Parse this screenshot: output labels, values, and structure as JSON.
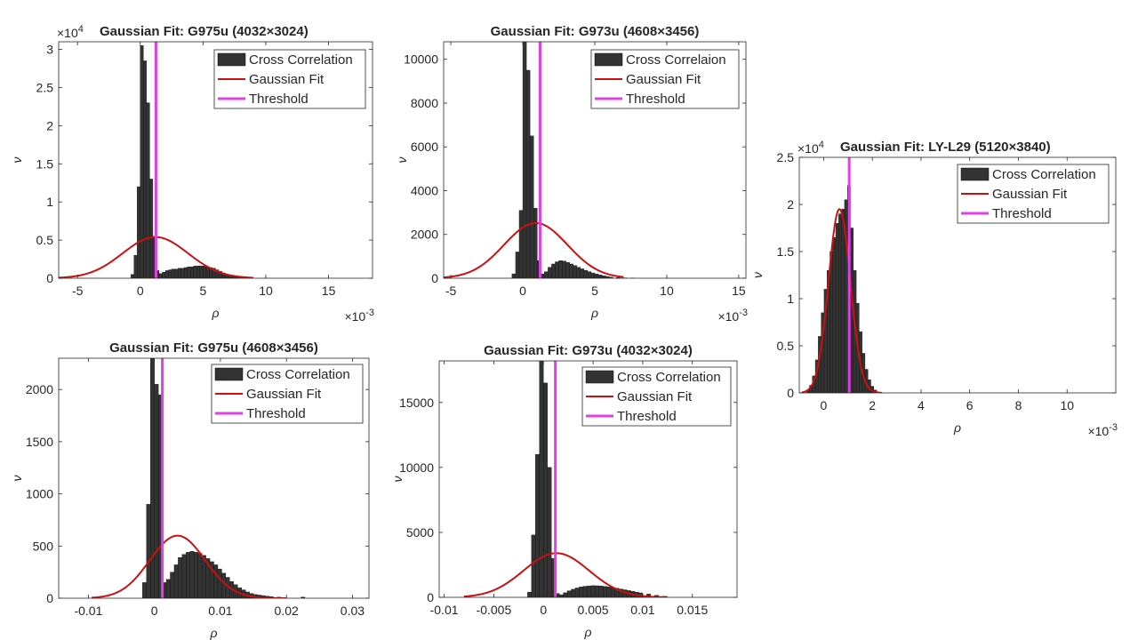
{
  "chart_data": [
    {
      "id": "p1",
      "type": "bar",
      "title": "Gaussian Fit: G975u (4032×3024)",
      "xlabel": "ρ",
      "ylabel": "ν",
      "x_multiplier": {
        "base": "×10",
        "exp": "-3"
      },
      "y_multiplier": {
        "base": "×10",
        "exp": "4"
      },
      "xlim": [
        -6.5,
        18.5
      ],
      "ylim": [
        0,
        3.1
      ],
      "xticks": [
        -5,
        0,
        5,
        10,
        15
      ],
      "xtick_labels": [
        "-5",
        "0",
        "5",
        "10",
        "15"
      ],
      "yticks": [
        0,
        0.5,
        1,
        1.5,
        2,
        2.5,
        3
      ],
      "ytick_labels": [
        "0",
        "0.5",
        "1",
        "1.5",
        "2",
        "2.5",
        "3"
      ],
      "bin_width": 0.25,
      "histogram": {
        "name": "Cross Correlation",
        "x": [
          -0.75,
          -0.5,
          -0.25,
          0,
          0.25,
          0.5,
          0.75,
          1,
          1.25,
          1.5,
          1.75,
          2,
          2.25,
          2.5,
          2.75,
          3,
          3.25,
          3.5,
          3.75,
          4,
          4.25,
          4.5,
          4.75,
          5,
          5.25,
          5.5,
          5.75,
          6,
          6.25,
          6.5,
          6.75,
          7,
          7.25,
          7.5,
          7.75,
          8,
          8.5
        ],
        "values": [
          0.05,
          0.3,
          1.2,
          3.05,
          2.85,
          2.3,
          1.3,
          0.55,
          0.1,
          0.06,
          0.08,
          0.1,
          0.11,
          0.12,
          0.12,
          0.13,
          0.13,
          0.14,
          0.15,
          0.15,
          0.16,
          0.16,
          0.16,
          0.16,
          0.15,
          0.14,
          0.13,
          0.11,
          0.09,
          0.07,
          0.05,
          0.04,
          0.03,
          0.02,
          0.015,
          0.01,
          0.005
        ]
      },
      "fit": {
        "name": "Gaussian Fit",
        "mu": 1.2,
        "sigma": 2.6,
        "peak": 0.54,
        "range": [
          -6.5,
          9
        ]
      },
      "threshold": {
        "name": "Threshold",
        "x": 1.25
      },
      "legend": {
        "position": "top-right",
        "entries": [
          "Cross Correlation",
          "Gaussian Fit",
          "Threshold"
        ]
      }
    },
    {
      "id": "p2",
      "type": "bar",
      "title": "Gaussian Fit: G973u (4608×3456)",
      "xlabel": "ρ",
      "ylabel": "ν",
      "x_multiplier": {
        "base": "×10",
        "exp": "-3"
      },
      "y_multiplier": null,
      "xlim": [
        -5.5,
        15.5
      ],
      "ylim": [
        0,
        10800
      ],
      "xticks": [
        -5,
        0,
        5,
        10,
        15
      ],
      "xtick_labels": [
        "-5",
        "0",
        "5",
        "10",
        "15"
      ],
      "yticks": [
        0,
        2000,
        4000,
        6000,
        8000,
        10000
      ],
      "ytick_labels": [
        "0",
        "2000",
        "4000",
        "6000",
        "8000",
        "10000"
      ],
      "bin_width": 0.25,
      "histogram": {
        "name": "Cross Correlaion",
        "x": [
          -0.75,
          -0.5,
          -0.25,
          0,
          0.25,
          0.5,
          0.75,
          1,
          1.25,
          1.5,
          1.75,
          2,
          2.25,
          2.5,
          2.75,
          3,
          3.25,
          3.5,
          3.75,
          4,
          4.25,
          4.5,
          4.75,
          5,
          5.25,
          5.5,
          5.75,
          6,
          6.5,
          7,
          7.5
        ],
        "values": [
          200,
          1200,
          3100,
          10800,
          9500,
          6500,
          3200,
          800,
          200,
          300,
          500,
          650,
          750,
          800,
          780,
          720,
          650,
          580,
          500,
          430,
          360,
          300,
          240,
          190,
          150,
          110,
          80,
          50,
          30,
          15,
          8
        ]
      },
      "fit": {
        "name": "Gaussian Fit",
        "mu": 0.9,
        "sigma": 2.2,
        "peak": 2520,
        "range": [
          -5.5,
          7
        ]
      },
      "threshold": {
        "name": "Threshold",
        "x": 1.2
      },
      "legend": {
        "position": "top-right",
        "entries": [
          "Cross Correlaion",
          "Gaussian Fit",
          "Threshold"
        ]
      }
    },
    {
      "id": "p3",
      "type": "bar",
      "title": "Gaussian Fit: LY-L29 (5120×3840)",
      "xlabel": "ρ",
      "ylabel": "ν",
      "x_multiplier": {
        "base": "×10",
        "exp": "-3"
      },
      "y_multiplier": {
        "base": "×10",
        "exp": "4"
      },
      "xlim": [
        -1,
        12
      ],
      "ylim": [
        0,
        2.5
      ],
      "xticks": [
        0,
        2,
        4,
        6,
        8,
        10
      ],
      "xtick_labels": [
        "0",
        "2",
        "4",
        "6",
        "8",
        "10"
      ],
      "yticks": [
        0,
        0.5,
        1,
        1.5,
        2,
        2.5
      ],
      "ytick_labels": [
        "0",
        "0.5",
        "1",
        "1.5",
        "2",
        "2.5"
      ],
      "bin_width": 0.12,
      "histogram": {
        "name": "Cross Correlation",
        "x": [
          -0.7,
          -0.58,
          -0.46,
          -0.34,
          -0.22,
          -0.1,
          0.02,
          0.14,
          0.26,
          0.38,
          0.5,
          0.62,
          0.74,
          0.86,
          0.98,
          1.1,
          1.22,
          1.34,
          1.46,
          1.58,
          1.7,
          1.82,
          1.94,
          2.06,
          2.18
        ],
        "values": [
          0.03,
          0.08,
          0.18,
          0.35,
          0.6,
          0.85,
          1.1,
          1.3,
          1.5,
          1.65,
          1.8,
          1.9,
          1.95,
          2.05,
          2.2,
          1.75,
          1.3,
          0.95,
          0.65,
          0.42,
          0.25,
          0.14,
          0.07,
          0.03,
          0.01
        ]
      },
      "fit": {
        "name": "Gaussian Fit",
        "mu": 0.65,
        "sigma": 0.45,
        "peak": 1.95,
        "range": [
          -0.9,
          2.4
        ]
      },
      "threshold": {
        "name": "Threshold",
        "x": 1.05
      },
      "legend": {
        "position": "top-right",
        "entries": [
          "Cross Correlation",
          "Gaussian Fit",
          "Threshold"
        ]
      }
    },
    {
      "id": "p4",
      "type": "bar",
      "title": "Gaussian Fit: G975u (4608×3456)",
      "xlabel": "ρ",
      "ylabel": "ν",
      "x_multiplier": null,
      "y_multiplier": null,
      "xlim": [
        -0.0145,
        0.0325
      ],
      "ylim": [
        0,
        2300
      ],
      "xticks": [
        -0.01,
        0,
        0.01,
        0.02,
        0.03
      ],
      "xtick_labels": [
        "-0.01",
        "0",
        "0.01",
        "0.02",
        "0.03"
      ],
      "yticks": [
        0,
        500,
        1000,
        1500,
        2000
      ],
      "ytick_labels": [
        "0",
        "500",
        "1000",
        "1500",
        "2000"
      ],
      "bin_width": 0.0006,
      "histogram": {
        "name": "Cross Correlation",
        "x": [
          -0.0018,
          -0.0012,
          -0.0006,
          0,
          0.0006,
          0.0012,
          0.0018,
          0.0024,
          0.003,
          0.0036,
          0.0042,
          0.0048,
          0.0054,
          0.006,
          0.0066,
          0.0072,
          0.0078,
          0.0084,
          0.009,
          0.0096,
          0.0102,
          0.0108,
          0.0114,
          0.012,
          0.0126,
          0.0132,
          0.0138,
          0.0144,
          0.015,
          0.0156,
          0.0162,
          0.0168,
          0.0174,
          0.0186,
          0.0222
        ],
        "values": [
          150,
          900,
          2300,
          2050,
          1950,
          150,
          180,
          250,
          320,
          390,
          420,
          440,
          450,
          440,
          430,
          410,
          380,
          350,
          320,
          280,
          240,
          200,
          160,
          130,
          100,
          80,
          60,
          45,
          35,
          30,
          25,
          20,
          15,
          10,
          10
        ]
      },
      "fit": {
        "name": "Gaussian Fit",
        "mu": 0.0035,
        "sigma": 0.0042,
        "peak": 600,
        "range": [
          -0.0095,
          0.02
        ]
      },
      "threshold": {
        "name": "Threshold",
        "x": 0.0012
      },
      "legend": {
        "position": "top-right",
        "entries": [
          "Cross Correlation",
          "Gaussian Fit",
          "Threshold"
        ]
      }
    },
    {
      "id": "p5",
      "type": "bar",
      "title": "Gaussian Fit: G973u (4032×3024)",
      "xlabel": "ρ",
      "ylabel": "ν",
      "x_multiplier": null,
      "y_multiplier": null,
      "xlim": [
        -0.0105,
        0.0195
      ],
      "ylim": [
        0,
        18200
      ],
      "xticks": [
        -0.01,
        -0.005,
        0,
        0.005,
        0.01,
        0.015
      ],
      "xtick_labels": [
        "-0.01",
        "-0.005",
        "0",
        "0.005",
        "0.01",
        "0.015"
      ],
      "yticks": [
        0,
        5000,
        10000,
        15000
      ],
      "ytick_labels": [
        "0",
        "5000",
        "10000",
        "15000"
      ],
      "bin_width": 0.0004,
      "histogram": {
        "name": "Cross Correlation",
        "x": [
          -0.0016,
          -0.0012,
          -0.0008,
          -0.0004,
          0,
          0.0004,
          0.0008,
          0.0012,
          0.0016,
          0.002,
          0.0024,
          0.0028,
          0.0032,
          0.0036,
          0.004,
          0.0044,
          0.0048,
          0.0052,
          0.0056,
          0.006,
          0.0064,
          0.0068,
          0.0072,
          0.0076,
          0.008,
          0.0084,
          0.0088,
          0.0092,
          0.0096,
          0.0104,
          0.0112,
          0.012
        ],
        "values": [
          400,
          4800,
          11000,
          18200,
          16500,
          10000,
          3000,
          300,
          200,
          350,
          500,
          620,
          720,
          800,
          850,
          880,
          900,
          890,
          870,
          840,
          800,
          750,
          700,
          640,
          580,
          520,
          460,
          400,
          340,
          250,
          150,
          80
        ]
      },
      "fit": {
        "name": "Gaussian Fit",
        "mu": 0.0013,
        "sigma": 0.0033,
        "peak": 3400,
        "range": [
          -0.008,
          0.0125
        ]
      },
      "threshold": {
        "name": "Threshold",
        "x": 0.0012
      },
      "legend": {
        "position": "top-right",
        "entries": [
          "Cross Correlation",
          "Gaussian Fit",
          "Threshold"
        ]
      }
    }
  ],
  "colors": {
    "histogram": "#333333",
    "fit": "#cc1010",
    "threshold": "#e040e8",
    "axis": "#262626",
    "background": "#ffffff"
  }
}
